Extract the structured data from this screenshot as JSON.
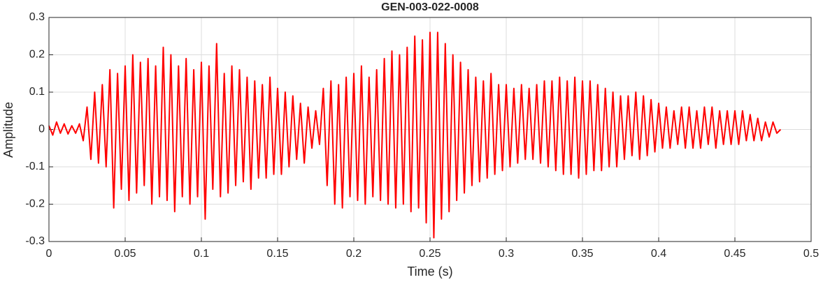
{
  "chart_data": {
    "type": "line",
    "title": "GEN-003-022-0008",
    "x_label": "Time (s)",
    "y_label": "Amplitude",
    "xlim": [
      0,
      0.5
    ],
    "ylim": [
      -0.3,
      0.3
    ],
    "xticks": [
      0,
      0.05,
      0.1,
      0.15,
      0.2,
      0.25,
      0.3,
      0.35,
      0.4,
      0.45,
      0.5
    ],
    "yticks": [
      -0.3,
      -0.2,
      -0.1,
      0,
      0.1,
      0.2,
      0.3
    ],
    "grid": true,
    "x": [
      0,
      0.0025,
      0.005,
      0.0075,
      0.01,
      0.0125,
      0.015,
      0.0175,
      0.02,
      0.0225,
      0.025,
      0.0275,
      0.03,
      0.0325,
      0.035,
      0.0375,
      0.04,
      0.0425,
      0.045,
      0.0475,
      0.05,
      0.0525,
      0.055,
      0.0575,
      0.06,
      0.0625,
      0.065,
      0.0675,
      0.07,
      0.0725,
      0.075,
      0.0775,
      0.08,
      0.0825,
      0.085,
      0.0875,
      0.09,
      0.0925,
      0.095,
      0.0975,
      0.1,
      0.1025,
      0.105,
      0.1075,
      0.11,
      0.1125,
      0.115,
      0.1175,
      0.12,
      0.1225,
      0.125,
      0.1275,
      0.13,
      0.1325,
      0.135,
      0.1375,
      0.14,
      0.1425,
      0.145,
      0.1475,
      0.15,
      0.1525,
      0.155,
      0.1575,
      0.16,
      0.1625,
      0.165,
      0.1675,
      0.17,
      0.1725,
      0.175,
      0.1775,
      0.18,
      0.1825,
      0.185,
      0.1875,
      0.19,
      0.1925,
      0.195,
      0.1975,
      0.2,
      0.2025,
      0.205,
      0.2075,
      0.21,
      0.2125,
      0.215,
      0.2175,
      0.22,
      0.2225,
      0.225,
      0.2275,
      0.23,
      0.2325,
      0.235,
      0.2375,
      0.24,
      0.2425,
      0.245,
      0.2475,
      0.25,
      0.2525,
      0.255,
      0.2575,
      0.26,
      0.2625,
      0.265,
      0.2675,
      0.27,
      0.2725,
      0.275,
      0.2775,
      0.28,
      0.2825,
      0.285,
      0.2875,
      0.29,
      0.2925,
      0.295,
      0.2975,
      0.3,
      0.3025,
      0.305,
      0.3075,
      0.31,
      0.3125,
      0.315,
      0.3175,
      0.32,
      0.3225,
      0.325,
      0.3275,
      0.33,
      0.3325,
      0.335,
      0.3375,
      0.34,
      0.3425,
      0.345,
      0.3475,
      0.35,
      0.3525,
      0.355,
      0.3575,
      0.36,
      0.3625,
      0.365,
      0.3675,
      0.37,
      0.3725,
      0.375,
      0.3775,
      0.38,
      0.3825,
      0.385,
      0.3875,
      0.39,
      0.3925,
      0.395,
      0.3975,
      0.4,
      0.4025,
      0.405,
      0.4075,
      0.41,
      0.4125,
      0.415,
      0.4175,
      0.42,
      0.4225,
      0.425,
      0.4275,
      0.43,
      0.4325,
      0.435,
      0.4375,
      0.44,
      0.4425,
      0.445,
      0.4475,
      0.45,
      0.4525,
      0.455,
      0.4575,
      0.46,
      0.4625,
      0.465,
      0.4675,
      0.47,
      0.4725,
      0.475,
      0.4775,
      0.48
    ],
    "series": [
      {
        "color": "#ff0000",
        "values": [
          0.01,
          -0.015,
          0.02,
          -0.01,
          0.015,
          -0.012,
          0.01,
          -0.01,
          0.015,
          -0.03,
          0.06,
          -0.08,
          0.1,
          -0.09,
          0.12,
          -0.1,
          0.16,
          -0.21,
          0.15,
          -0.16,
          0.17,
          -0.19,
          0.2,
          -0.17,
          0.18,
          -0.15,
          0.19,
          -0.2,
          0.17,
          -0.18,
          0.22,
          -0.19,
          0.2,
          -0.22,
          0.17,
          -0.18,
          0.19,
          -0.2,
          0.16,
          -0.18,
          0.18,
          -0.24,
          0.17,
          -0.16,
          0.23,
          -0.18,
          0.15,
          -0.17,
          0.17,
          -0.15,
          0.16,
          -0.14,
          0.14,
          -0.16,
          0.13,
          -0.13,
          0.12,
          -0.13,
          0.14,
          -0.12,
          0.11,
          -0.12,
          0.1,
          -0.1,
          0.09,
          -0.08,
          0.07,
          -0.09,
          0.06,
          -0.05,
          0.05,
          -0.04,
          0.11,
          -0.15,
          0.13,
          -0.2,
          0.12,
          -0.21,
          0.14,
          -0.18,
          0.15,
          -0.19,
          0.17,
          -0.2,
          0.14,
          -0.18,
          0.16,
          -0.19,
          0.19,
          -0.2,
          0.21,
          -0.21,
          0.2,
          -0.2,
          0.22,
          -0.22,
          0.25,
          -0.21,
          0.24,
          -0.25,
          0.26,
          -0.29,
          0.26,
          -0.24,
          0.23,
          -0.22,
          0.2,
          -0.19,
          0.18,
          -0.17,
          0.16,
          -0.15,
          0.14,
          -0.14,
          0.13,
          -0.13,
          0.15,
          -0.12,
          0.12,
          -0.11,
          0.12,
          -0.1,
          0.11,
          -0.09,
          0.12,
          -0.08,
          0.11,
          -0.08,
          0.12,
          -0.09,
          0.13,
          -0.1,
          0.13,
          -0.11,
          0.14,
          -0.12,
          0.13,
          -0.12,
          0.14,
          -0.13,
          0.13,
          -0.12,
          0.13,
          -0.11,
          0.12,
          -0.11,
          0.11,
          -0.1,
          0.1,
          -0.1,
          0.09,
          -0.08,
          0.09,
          -0.07,
          0.1,
          -0.08,
          0.09,
          -0.07,
          0.08,
          -0.06,
          0.07,
          -0.05,
          0.06,
          -0.05,
          0.05,
          -0.04,
          0.06,
          -0.05,
          0.06,
          -0.05,
          0.05,
          -0.05,
          0.06,
          -0.04,
          0.06,
          -0.05,
          0.05,
          -0.04,
          0.05,
          -0.04,
          0.05,
          -0.04,
          0.05,
          -0.03,
          0.04,
          -0.03,
          0.03,
          -0.03,
          0.02,
          -0.02,
          0.02,
          -0.01,
          0
        ]
      }
    ]
  }
}
